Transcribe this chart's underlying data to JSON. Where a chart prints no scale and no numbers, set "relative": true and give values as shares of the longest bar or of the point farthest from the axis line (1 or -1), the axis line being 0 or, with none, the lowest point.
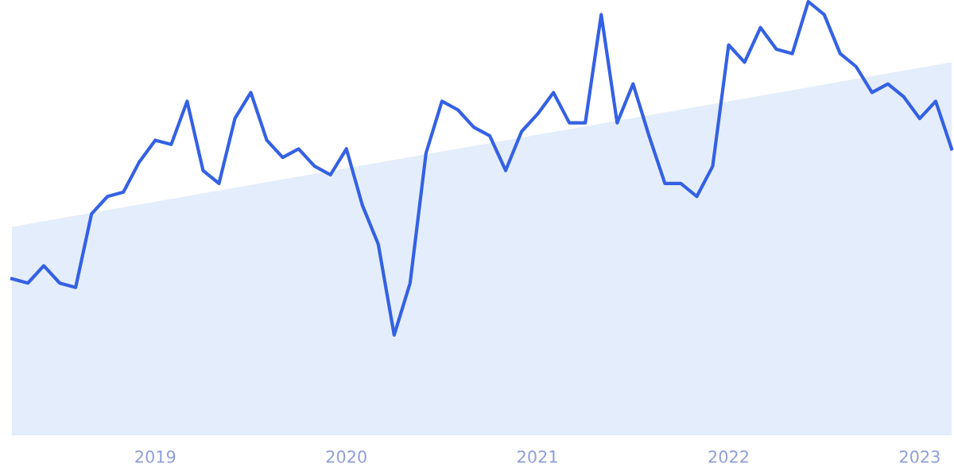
{
  "chart_data": {
    "type": "line",
    "relative": true,
    "x": [
      "2018-04",
      "2018-05",
      "2018-06",
      "2018-07",
      "2018-08",
      "2018-09",
      "2018-10",
      "2018-11",
      "2018-12",
      "2019-01",
      "2019-02",
      "2019-03",
      "2019-04",
      "2019-05",
      "2019-06",
      "2019-07",
      "2019-08",
      "2019-09",
      "2019-10",
      "2019-11",
      "2019-12",
      "2020-01",
      "2020-02",
      "2020-03",
      "2020-04",
      "2020-05",
      "2020-06",
      "2020-07",
      "2020-08",
      "2020-09",
      "2020-10",
      "2020-11",
      "2020-12",
      "2021-01",
      "2021-02",
      "2021-03",
      "2021-04",
      "2021-05",
      "2021-06",
      "2021-07",
      "2021-08",
      "2021-09",
      "2021-10",
      "2021-11",
      "2021-12",
      "2022-01",
      "2022-02",
      "2022-03",
      "2022-04",
      "2022-05",
      "2022-06",
      "2022-07",
      "2022-08",
      "2022-09",
      "2022-10",
      "2022-11",
      "2022-12",
      "2023-01",
      "2023-02",
      "2023-03"
    ],
    "xlim": [
      "2018-04",
      "2023-03"
    ],
    "xticks": [
      {
        "value": "2019-01",
        "label": "2019"
      },
      {
        "value": "2020-01",
        "label": "2020"
      },
      {
        "value": "2021-01",
        "label": "2021"
      },
      {
        "value": "2022-01",
        "label": "2022"
      },
      {
        "value": "2023-01",
        "label": "2023"
      }
    ],
    "series": [
      {
        "type": "area",
        "color": "#dde9fa",
        "x": [
          "2018-04",
          "2023-03"
        ],
        "values": [
          0.48,
          0.86
        ]
      },
      {
        "color": "#3461e3",
        "values": [
          0.36,
          0.35,
          0.39,
          0.35,
          0.34,
          0.51,
          0.55,
          0.56,
          0.63,
          0.68,
          0.67,
          0.77,
          0.61,
          0.58,
          0.73,
          0.79,
          0.68,
          0.64,
          0.66,
          0.62,
          0.6,
          0.66,
          0.53,
          0.44,
          0.23,
          0.35,
          0.65,
          0.77,
          0.75,
          0.71,
          0.69,
          0.61,
          0.7,
          0.74,
          0.79,
          0.72,
          0.72,
          0.97,
          0.72,
          0.81,
          0.69,
          0.58,
          0.58,
          0.55,
          0.62,
          0.9,
          0.86,
          0.94,
          0.89,
          0.88,
          1.0,
          0.97,
          0.88,
          0.85,
          0.79,
          0.81,
          0.78,
          0.73,
          0.77,
          0.66
        ]
      }
    ]
  }
}
